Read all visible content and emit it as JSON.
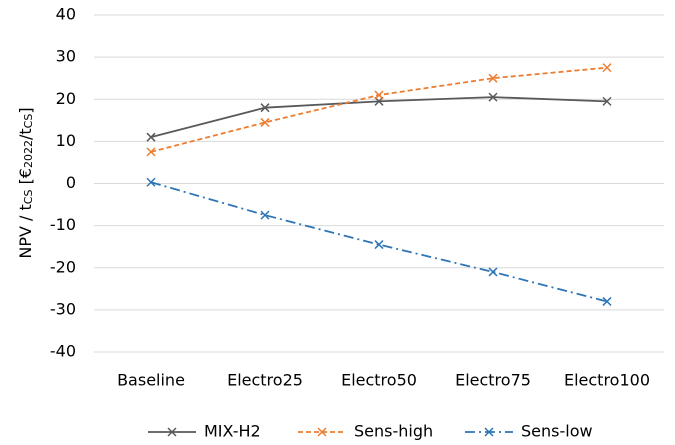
{
  "chart_data": {
    "type": "line",
    "ylabel": [
      "NPV / t",
      "CS",
      " [€",
      "2022",
      "/t",
      "CS",
      "]"
    ],
    "categories": [
      "Baseline",
      "Electro25",
      "Electro50",
      "Electro75",
      "Electro100"
    ],
    "series": [
      {
        "name": "MIX-H2",
        "color": "#595959",
        "dash": "solid",
        "values": [
          11,
          18,
          19.5,
          20.5,
          19.5
        ]
      },
      {
        "name": "Sens-high",
        "color": "#ed7d31",
        "dash": "dashed",
        "values": [
          7.5,
          14.5,
          21,
          25,
          27.5
        ]
      },
      {
        "name": "Sens-low",
        "color": "#2e75b6",
        "dash": "dashdot",
        "values": [
          0.3,
          -7.5,
          -14.5,
          -21,
          -28
        ]
      }
    ],
    "ylim": [
      -40,
      40
    ],
    "yticks": [
      -40,
      -30,
      -20,
      -10,
      0,
      10,
      20,
      30,
      40
    ],
    "grid": true,
    "legend": "bottom"
  }
}
